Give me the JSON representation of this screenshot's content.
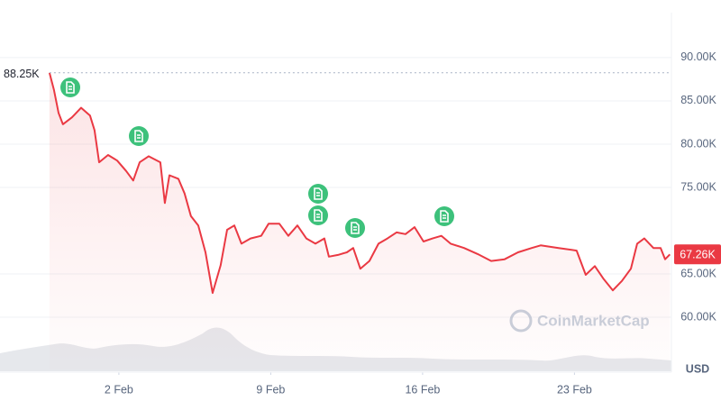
{
  "chart_data": {
    "type": "line",
    "color": "#ea3943",
    "grid": true,
    "unit_label": "USD",
    "watermark": "CoinMarketCap",
    "start_marker": {
      "value": 88.25,
      "label": "88.25K"
    },
    "current_marker": {
      "value": 67.26,
      "label": "67.26K"
    },
    "xlim": [
      -3.48,
      27.47
    ],
    "xticks": [
      {
        "value": 2,
        "label": "2 Feb"
      },
      {
        "value": 9,
        "label": "9 Feb"
      },
      {
        "value": 16,
        "label": "16 Feb"
      },
      {
        "value": 23,
        "label": "23 Feb"
      }
    ],
    "ylim": [
      53.96,
      95.2
    ],
    "yticks": [
      {
        "value": 60,
        "label": "60.00K"
      },
      {
        "value": 65,
        "label": "65.00K"
      },
      {
        "value": 75,
        "label": "75.00K"
      },
      {
        "value": 80,
        "label": "80.00K"
      },
      {
        "value": 85,
        "label": "85.00K"
      },
      {
        "value": 90,
        "label": "90.00K"
      }
    ],
    "x": [
      -1.2,
      -0.99,
      -0.78,
      -0.58,
      -0.16,
      0.26,
      0.67,
      0.88,
      1.09,
      1.5,
      1.92,
      2.33,
      2.66,
      2.96,
      3.37,
      3.91,
      4.12,
      4.33,
      4.74,
      5.03,
      5.32,
      5.66,
      5.99,
      6.32,
      6.69,
      6.99,
      7.32,
      7.65,
      8.07,
      8.56,
      8.9,
      9.4,
      9.81,
      10.23,
      10.64,
      11.06,
      11.47,
      11.68,
      12.1,
      12.51,
      12.8,
      13.13,
      13.55,
      13.97,
      14.38,
      14.8,
      15.21,
      15.63,
      16.04,
      16.46,
      16.87,
      17.29,
      17.91,
      18.54,
      19.16,
      19.78,
      20.4,
      21.03,
      21.44,
      22.27,
      23.1,
      23.52,
      23.94,
      24.35,
      24.77,
      25.19,
      25.6,
      25.89,
      26.22,
      26.64,
      26.97,
      27.18,
      27.4
    ],
    "values": [
      88.25,
      86.25,
      83.6,
      82.3,
      83.1,
      84.2,
      83.3,
      81.6,
      77.9,
      78.75,
      78.1,
      76.9,
      75.8,
      77.9,
      78.6,
      77.9,
      73.2,
      76.4,
      76.0,
      74.3,
      71.7,
      70.6,
      67.5,
      62.8,
      66.0,
      70.1,
      70.6,
      68.5,
      69.1,
      69.4,
      70.8,
      70.8,
      69.4,
      70.6,
      69.1,
      68.5,
      69.1,
      67.0,
      67.2,
      67.5,
      68.0,
      65.6,
      66.5,
      68.5,
      69.1,
      69.8,
      69.6,
      70.4,
      68.75,
      69.1,
      69.4,
      68.5,
      68.0,
      67.3,
      66.5,
      66.7,
      67.5,
      68.0,
      68.3,
      68.0,
      67.7,
      64.9,
      65.9,
      64.4,
      63.1,
      64.2,
      65.6,
      68.5,
      69.1,
      68.0,
      68.0,
      66.7,
      67.26
    ]
  }
}
